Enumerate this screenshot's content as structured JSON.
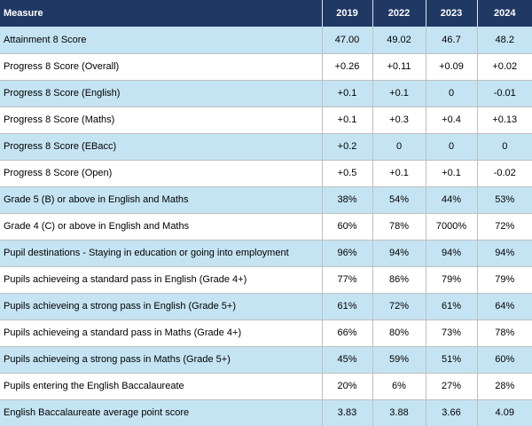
{
  "table": {
    "header": {
      "measure": "Measure",
      "years": [
        "2019",
        "2022",
        "2023",
        "2024"
      ]
    },
    "rows": [
      {
        "measure": "Attainment 8 Score",
        "values": [
          "47.00",
          "49.02",
          "46.7",
          "48.2"
        ]
      },
      {
        "measure": "Progress 8 Score (Overall)",
        "values": [
          "+0.26",
          "+0.11",
          "+0.09",
          "+0.02"
        ]
      },
      {
        "measure": "Progress 8 Score (English)",
        "values": [
          "+0.1",
          "+0.1",
          "0",
          "-0.01"
        ]
      },
      {
        "measure": "Progress 8 Score (Maths)",
        "values": [
          "+0.1",
          "+0.3",
          "+0.4",
          "+0.13"
        ]
      },
      {
        "measure": "Progress 8 Score (EBacc)",
        "values": [
          "+0.2",
          "0",
          "0",
          "0"
        ]
      },
      {
        "measure": "Progress 8 Score (Open)",
        "values": [
          "+0.5",
          "+0.1",
          "+0.1",
          "-0.02"
        ]
      },
      {
        "measure": "Grade 5 (B) or above in English and Maths",
        "values": [
          "38%",
          "54%",
          "44%",
          "53%"
        ]
      },
      {
        "measure": "Grade 4 (C) or above in English and Maths",
        "values": [
          "60%",
          "78%",
          "7000%",
          "72%"
        ]
      },
      {
        "measure": "Pupil destinations - Staying in education or going into employment",
        "values": [
          "96%",
          "94%",
          "94%",
          "94%"
        ]
      },
      {
        "measure": "Pupils achieveing a standard pass in English (Grade 4+)",
        "values": [
          "77%",
          "86%",
          "79%",
          "79%"
        ]
      },
      {
        "measure": "Pupils achieveing a strong pass in English (Grade 5+)",
        "values": [
          "61%",
          "72%",
          "61%",
          "64%"
        ]
      },
      {
        "measure": "Pupils achieveing a standard pass in Maths (Grade 4+)",
        "values": [
          "66%",
          "80%",
          "73%",
          "78%"
        ]
      },
      {
        "measure": "Pupils achieveing a strong pass in Maths (Grade 5+)",
        "values": [
          "45%",
          "59%",
          "51%",
          "60%"
        ]
      },
      {
        "measure": "Pupils entering the English Baccalaureate",
        "values": [
          "20%",
          "6%",
          "27%",
          "28%"
        ]
      },
      {
        "measure": "English Baccalaureate average point score",
        "values": [
          "3.83",
          "3.88",
          "3.66",
          "4.09"
        ]
      }
    ]
  },
  "colors": {
    "header_bg": "#203864",
    "header_text": "#ffffff",
    "shaded_row": "#c5e4f3",
    "plain_row": "#ffffff"
  }
}
